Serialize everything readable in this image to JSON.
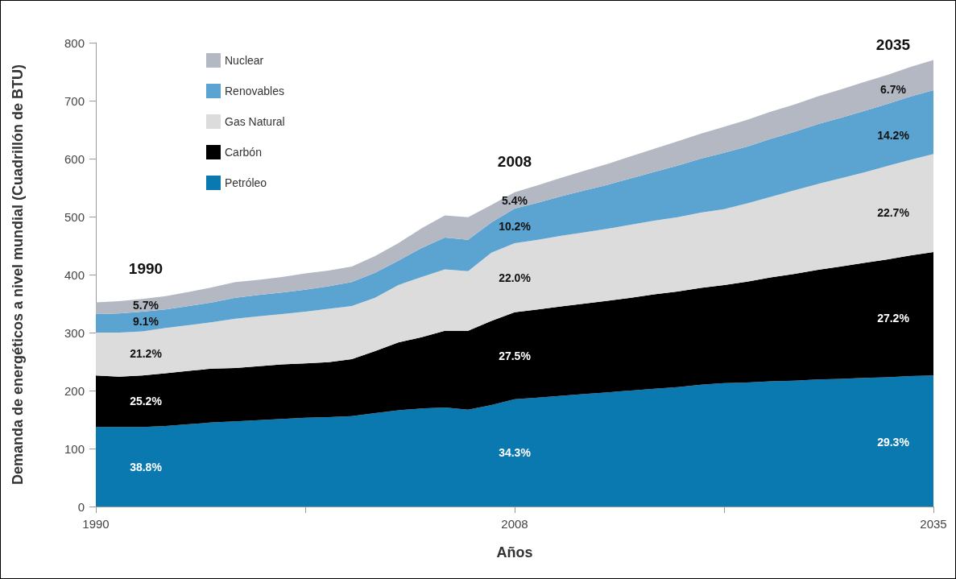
{
  "chart_data": {
    "type": "area",
    "stacked": true,
    "xlabel": "Años",
    "ylabel": "Demanda de energéticos a nivel mundial (Cuadrillón de BTU)",
    "categories": [
      "1990",
      null,
      null,
      null,
      null,
      null,
      null,
      null,
      null,
      null,
      null,
      null,
      null,
      null,
      null,
      null,
      null,
      null,
      "2008",
      null,
      null,
      null,
      null,
      null,
      null,
      null,
      null,
      null,
      null,
      null,
      null,
      null,
      null,
      null,
      null,
      null,
      "2035"
    ],
    "series": [
      {
        "name": "Petróleo",
        "color": "#0a79b0",
        "values": [
          137,
          137,
          137,
          139,
          142,
          145,
          147,
          149,
          151,
          153,
          154,
          156,
          161,
          166,
          169,
          171,
          167,
          175,
          185,
          188,
          191,
          194,
          197,
          200,
          203,
          206,
          210,
          213,
          214,
          216,
          217,
          219,
          220,
          222,
          223,
          225,
          226
        ]
      },
      {
        "name": "Carbón",
        "color": "#000000",
        "values": [
          89,
          87,
          89,
          91,
          92,
          93,
          92,
          93,
          94,
          94,
          95,
          98,
          107,
          117,
          123,
          132,
          136,
          145,
          150,
          152,
          154,
          156,
          158,
          160,
          163,
          165,
          167,
          169,
          174,
          179,
          184,
          189,
          194,
          198,
          203,
          208,
          213
        ]
      },
      {
        "name": "Gas Natural",
        "color": "#dcdcdc",
        "values": [
          74,
          76,
          76,
          78,
          79,
          80,
          85,
          86,
          87,
          89,
          92,
          92,
          92,
          99,
          104,
          106,
          103,
          118,
          119,
          120,
          122,
          123,
          124,
          126,
          127,
          128,
          130,
          131,
          135,
          139,
          144,
          148,
          152,
          156,
          161,
          165,
          169
        ]
      },
      {
        "name": "Renovables",
        "color": "#5ba3d0",
        "values": [
          32,
          33,
          34,
          32,
          33,
          34,
          36,
          37,
          37,
          38,
          39,
          41,
          43,
          42,
          50,
          55,
          54,
          52,
          60,
          64,
          68,
          72,
          76,
          80,
          84,
          89,
          93,
          97,
          98,
          100,
          101,
          103,
          104,
          106,
          107,
          109,
          110
        ]
      },
      {
        "name": "Nuclear",
        "color": "#b4b8c2",
        "values": [
          20,
          21,
          22,
          23,
          24,
          26,
          27,
          26,
          27,
          28,
          27,
          27,
          29,
          30,
          34,
          38,
          39,
          30,
          28,
          30,
          32,
          34,
          36,
          38,
          40,
          42,
          43,
          45,
          46,
          47,
          47,
          48,
          49,
          50,
          50,
          51,
          52
        ]
      }
    ],
    "ylim": [
      0,
      800
    ],
    "yticks": [
      0,
      100,
      200,
      300,
      400,
      500,
      600,
      700,
      800
    ],
    "grid": false,
    "legend": "top left",
    "annotations": [
      "1990",
      "5.7%",
      "9.1%",
      "21.2%",
      "25.2%",
      "38.8%",
      "2008",
      "5.4%",
      "10.2%",
      "22.0%",
      "27.5%",
      "34.3%",
      "2035",
      "6.7%",
      "14.2%",
      "22.7%",
      "27.2%",
      "29.3%"
    ]
  }
}
